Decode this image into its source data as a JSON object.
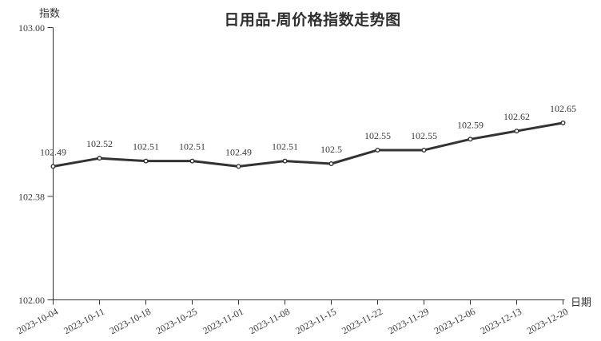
{
  "page": {
    "background": "#ffffff"
  },
  "chart_data": {
    "type": "line",
    "title": "日用品-周价格指数走势图",
    "ylabel": "指数",
    "xlabel": "日期",
    "categories": [
      "2023-10-04",
      "2023-10-11",
      "2023-10-18",
      "2023-10-25",
      "2023-11-01",
      "2023-11-08",
      "2023-11-15",
      "2023-11-22",
      "2023-11-29",
      "2023-12-06",
      "2023-12-13",
      "2023-12-20"
    ],
    "values": [
      102.49,
      102.52,
      102.51,
      102.51,
      102.49,
      102.51,
      102.5,
      102.55,
      102.55,
      102.59,
      102.62,
      102.65
    ],
    "point_labels": [
      "102.49",
      "102.52",
      "102.51",
      "102.51",
      "102.49",
      "102.51",
      "102.5",
      "102.55",
      "102.55",
      "102.59",
      "102.62",
      "102.65"
    ],
    "ylim": [
      102.0,
      103.0
    ],
    "yticks": {
      "values": [
        102.0,
        102.38,
        103.0
      ],
      "labels": [
        "102.00",
        "102.38",
        "103.00"
      ]
    },
    "grid": false,
    "legend": "none",
    "line_color": "#333333",
    "marker": "open-circle",
    "marker_fill": "#ffffff",
    "text_color": "#3a3a3a",
    "axis_color": "#333333"
  }
}
